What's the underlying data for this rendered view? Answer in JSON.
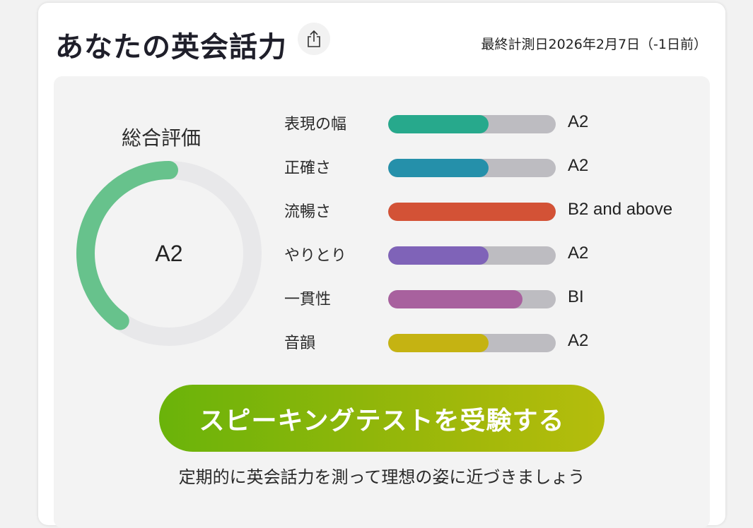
{
  "header": {
    "title": "あなたの英会話力",
    "share_icon": "share-icon",
    "last_measured": "最終計測日2026年2月7日（-1日前）"
  },
  "overall": {
    "label": "総合評価",
    "level": "A2",
    "progress_percent": 40,
    "colors": {
      "fill": "#67c28c",
      "track": "#e8e8ea"
    }
  },
  "skills": [
    {
      "label": "表現の幅",
      "level": "A2",
      "percent": 60,
      "color": "#27a98c"
    },
    {
      "label": "正確さ",
      "level": "A2",
      "percent": 60,
      "color": "#2590aa"
    },
    {
      "label": "流暢さ",
      "level": "B2 and above",
      "percent": 100,
      "color": "#d35236"
    },
    {
      "label": "やりとり",
      "level": "A2",
      "percent": 60,
      "color": "#7f63b8"
    },
    {
      "label": "一貫性",
      "level": "BI",
      "percent": 80,
      "color": "#a8619e"
    },
    {
      "label": "音韻",
      "level": "A2",
      "percent": 60,
      "color": "#c5b312"
    }
  ],
  "cta": {
    "label": "スピーキングテストを受験する",
    "note": "定期的に英会話力を測って理想の姿に近づきましょう"
  }
}
